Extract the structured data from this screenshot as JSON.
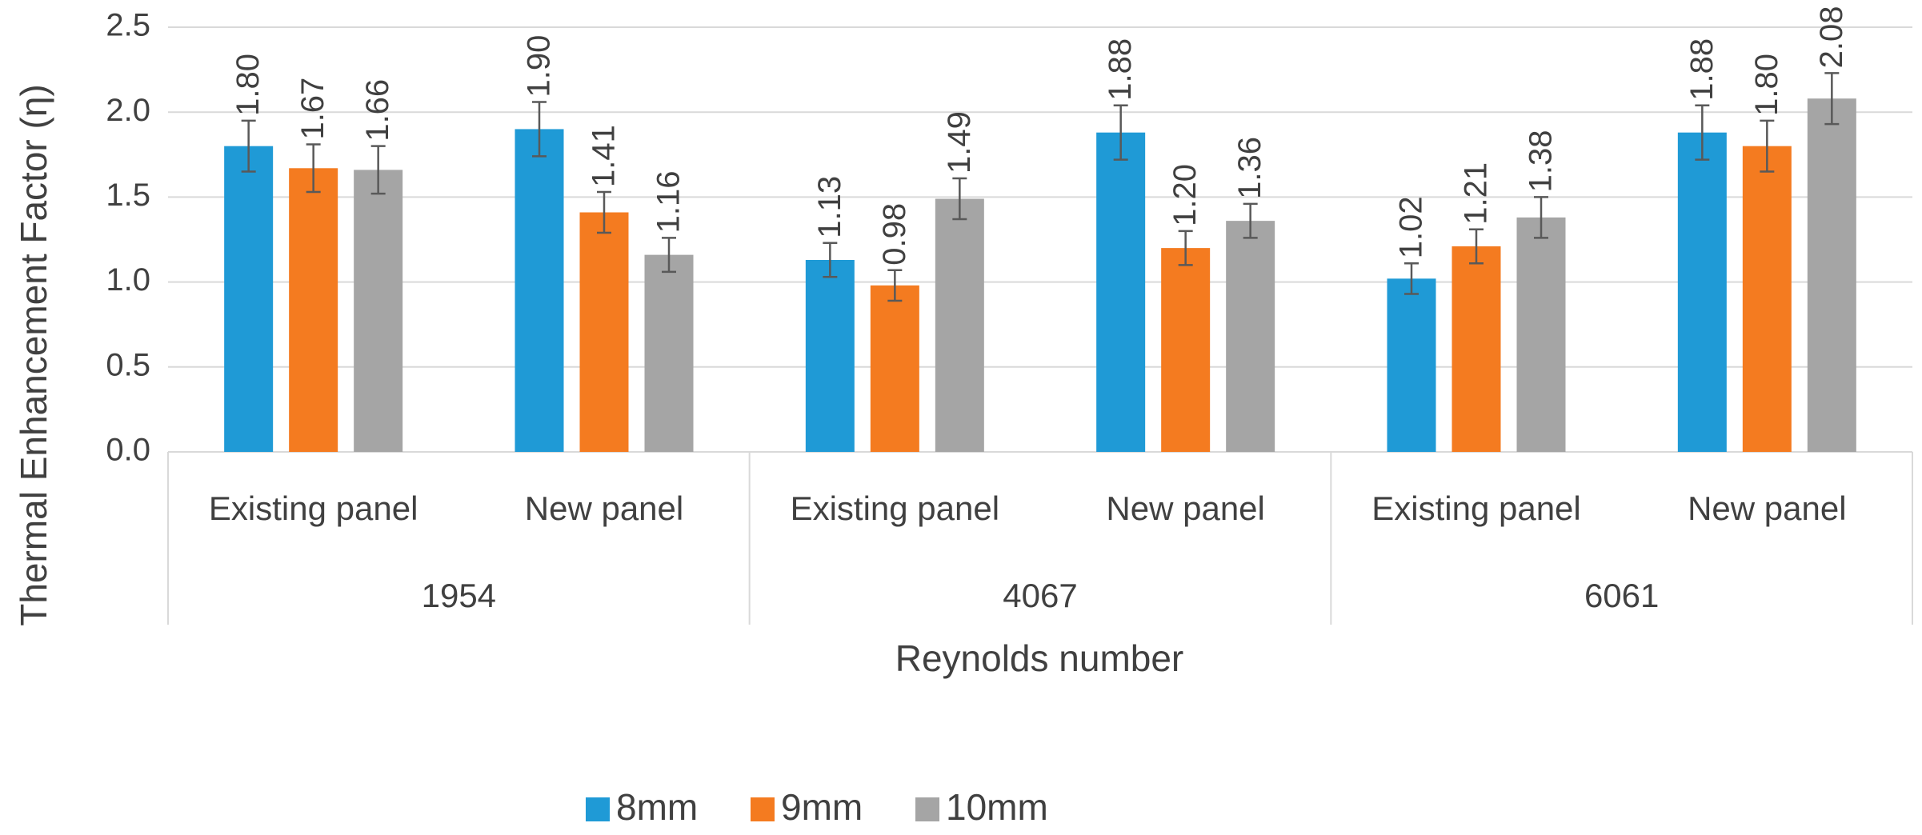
{
  "chart_data": {
    "type": "bar",
    "y_label": "Thermal Enhancement Factor (η)",
    "x_label": "Reynolds number",
    "categories": [
      "Existing panel",
      "New panel",
      "Existing panel",
      "New panel",
      "Existing panel",
      "New panel"
    ],
    "groups": [
      "1954",
      "4067",
      "6061"
    ],
    "series": [
      {
        "name": "8mm",
        "color": "#1f9ad6",
        "values": [
          1.8,
          1.9,
          1.13,
          1.88,
          1.02,
          1.88
        ],
        "value_labels": [
          "1.80",
          "1.90",
          "1.13",
          "1.88",
          "1.02",
          "1.88"
        ],
        "errors": [
          0.15,
          0.16,
          0.1,
          0.16,
          0.09,
          0.16
        ]
      },
      {
        "name": "9mm",
        "color": "#f47b20",
        "values": [
          1.67,
          1.41,
          0.98,
          1.2,
          1.21,
          1.8
        ],
        "value_labels": [
          "1.67",
          "1.41",
          "0.98",
          "1.20",
          "1.21",
          "1.80"
        ],
        "errors": [
          0.14,
          0.12,
          0.09,
          0.1,
          0.1,
          0.15
        ]
      },
      {
        "name": "10mm",
        "color": "#a5a5a5",
        "values": [
          1.66,
          1.16,
          1.49,
          1.36,
          1.38,
          2.08
        ],
        "value_labels": [
          "1.66",
          "1.16",
          "1.49",
          "1.36",
          "1.38",
          "2.08"
        ],
        "errors": [
          0.14,
          0.1,
          0.12,
          0.1,
          0.12,
          0.15
        ]
      }
    ],
    "ylim": [
      0,
      2.5
    ],
    "yticks": [
      {
        "value": 0,
        "label": "0.0"
      },
      {
        "value": 0.5,
        "label": "0.5"
      },
      {
        "value": 1,
        "label": "1.0"
      },
      {
        "value": 1.5,
        "label": "1.5"
      },
      {
        "value": 2,
        "label": "2.0"
      },
      {
        "value": 2.5,
        "label": "2.5"
      }
    ],
    "grid": true,
    "legend": "bottom"
  }
}
